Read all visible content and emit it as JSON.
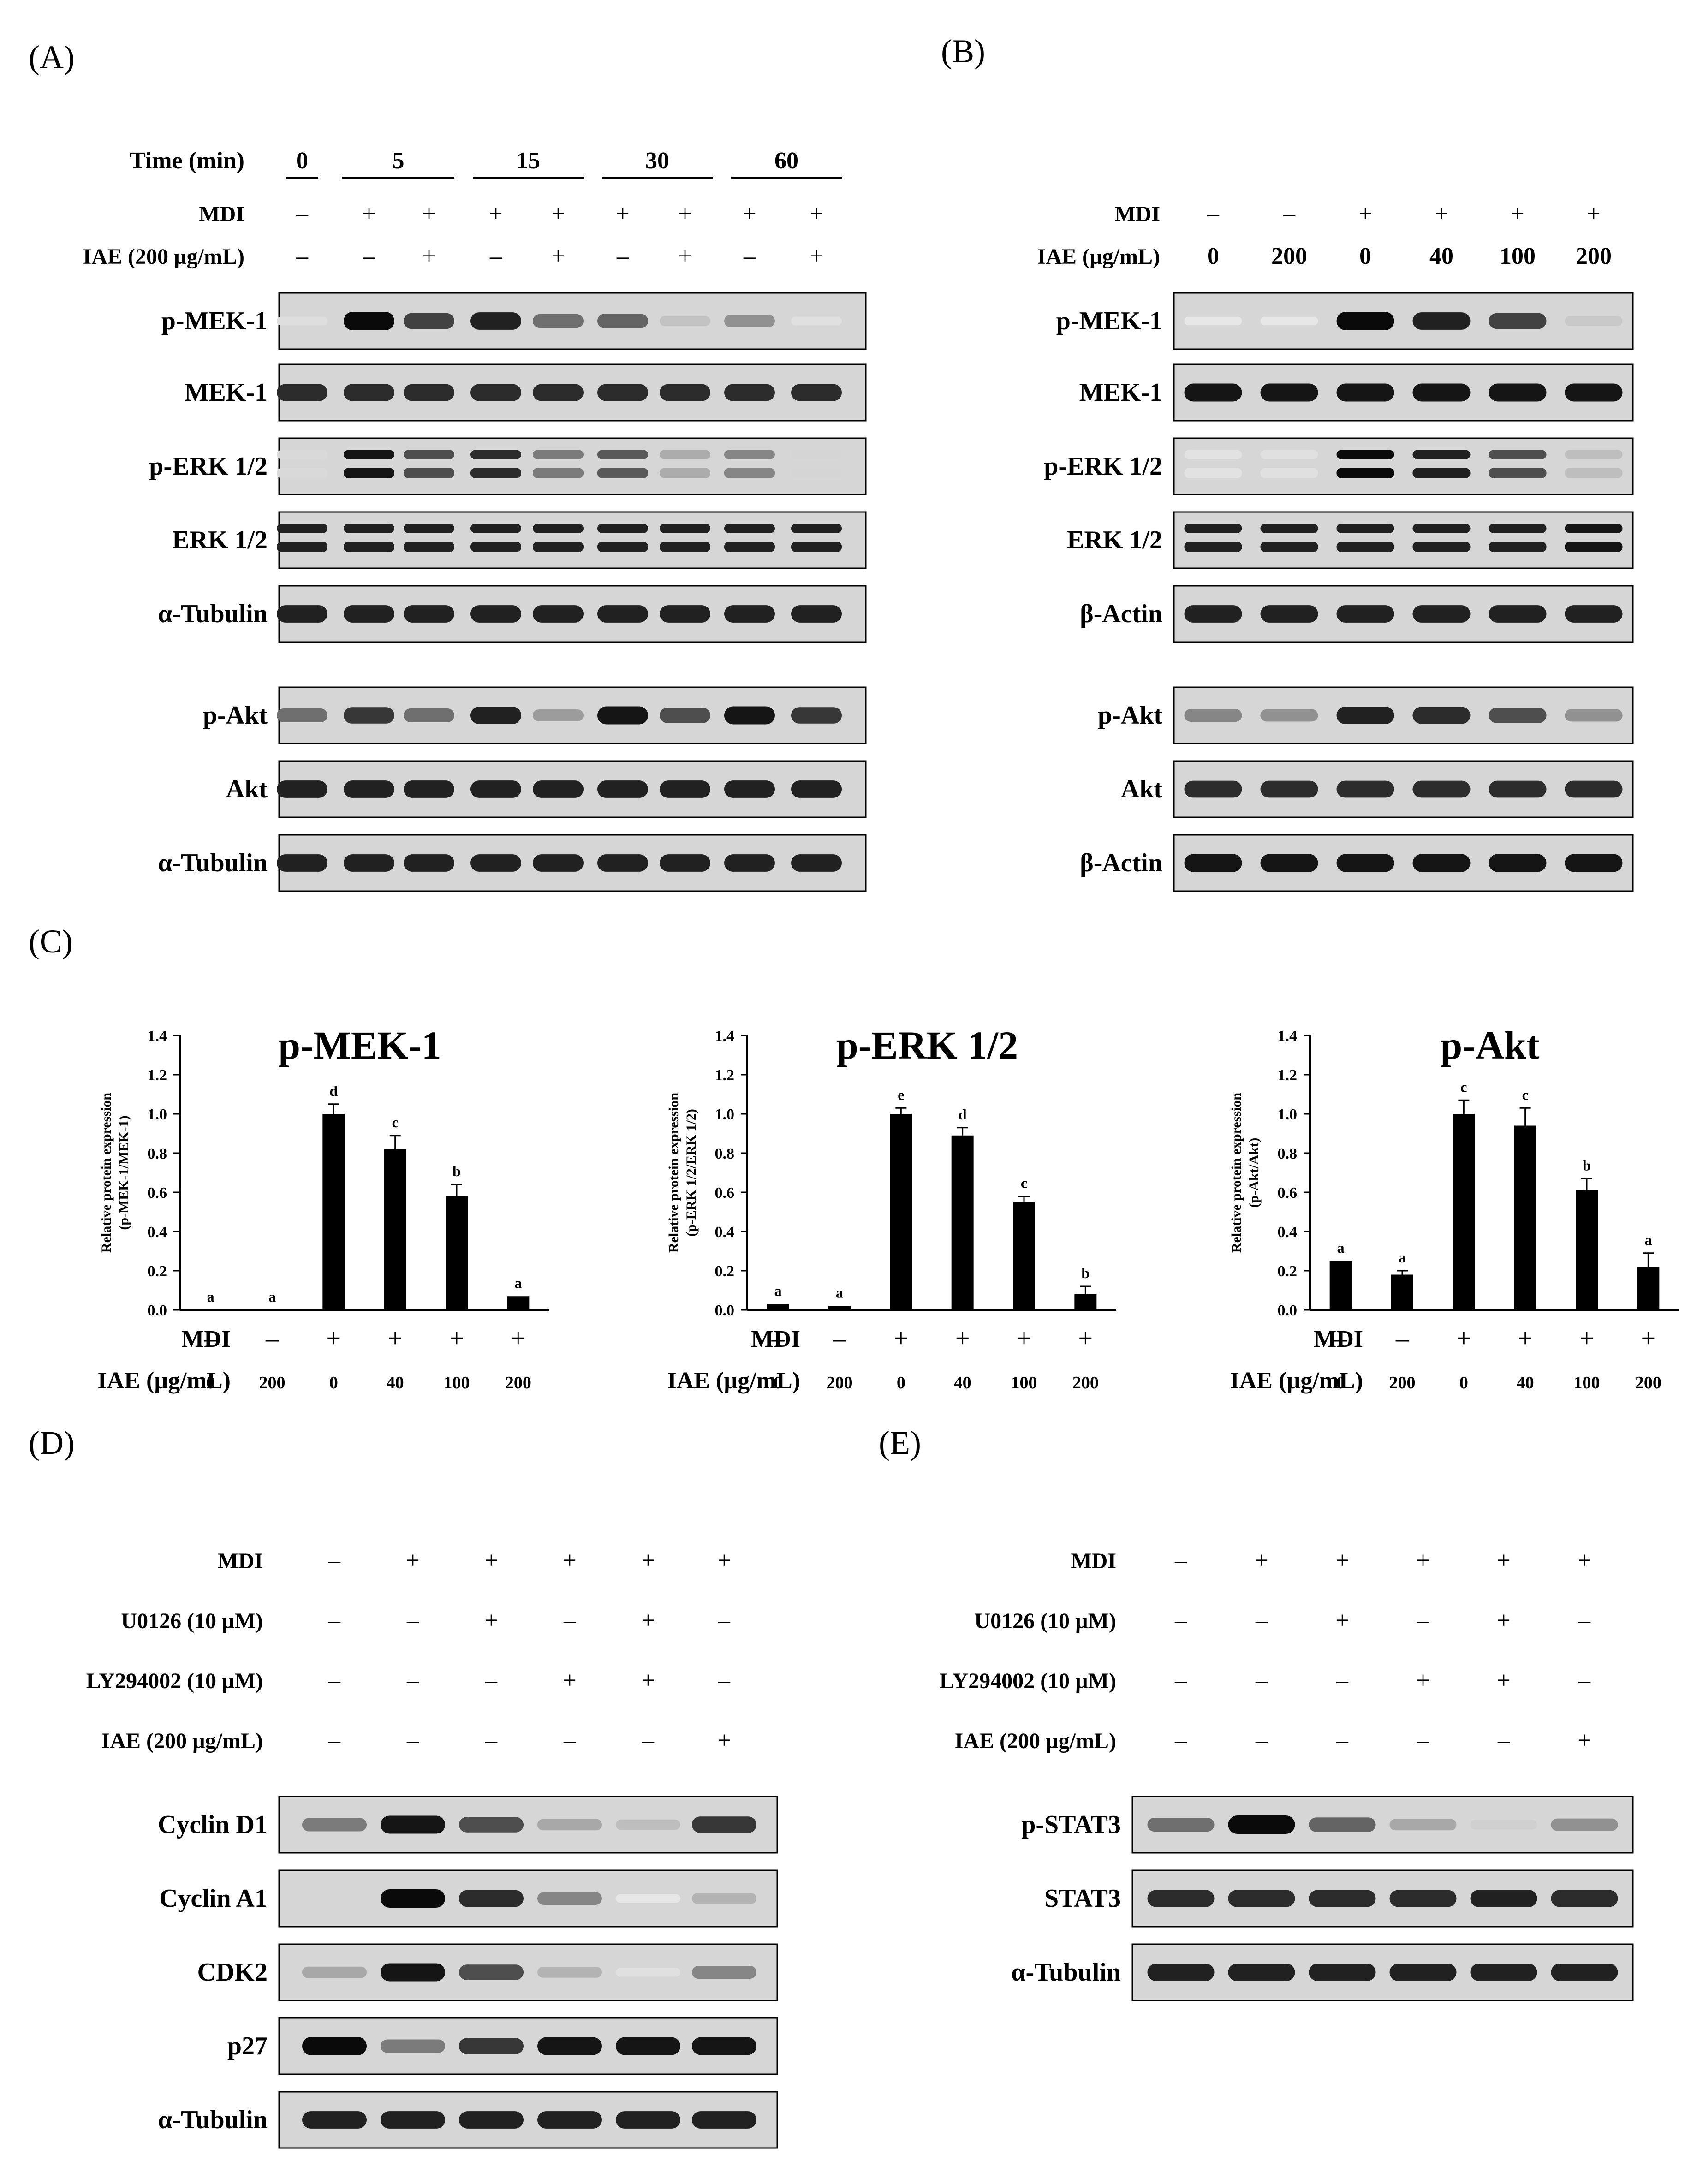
{
  "panels": {
    "A": {
      "label": "(A)",
      "time_label": "Time (min)",
      "time_groups": [
        "0",
        "5",
        "15",
        "30",
        "60"
      ],
      "rows": [
        {
          "label": "MDI",
          "values": [
            "–",
            "+",
            "+",
            "+",
            "+",
            "+",
            "+",
            "+",
            "+"
          ]
        },
        {
          "label": "IAE (200 µg/mL)",
          "values": [
            "–",
            "–",
            "+",
            "–",
            "+",
            "–",
            "+",
            "–",
            "+"
          ]
        }
      ],
      "blots": [
        {
          "label": "p-MEK-1",
          "intensity": [
            0.06,
            1.0,
            0.75,
            0.9,
            0.55,
            0.6,
            0.18,
            0.4,
            0.05
          ]
        },
        {
          "label": "MEK-1",
          "intensity": [
            0.85,
            0.85,
            0.85,
            0.85,
            0.85,
            0.85,
            0.85,
            0.85,
            0.85
          ]
        },
        {
          "label": "p-ERK 1/2",
          "doublet": true,
          "intensity": [
            0.08,
            0.95,
            0.7,
            0.85,
            0.5,
            0.65,
            0.28,
            0.45,
            0.1
          ]
        },
        {
          "label": "ERK 1/2",
          "doublet": true,
          "intensity": [
            0.9,
            0.9,
            0.9,
            0.9,
            0.9,
            0.9,
            0.9,
            0.9,
            0.9
          ]
        },
        {
          "label": "α-Tubulin",
          "intensity": [
            0.9,
            0.9,
            0.9,
            0.9,
            0.9,
            0.9,
            0.9,
            0.9,
            0.9
          ]
        },
        {
          "label": "p-Akt",
          "intensity": [
            0.55,
            0.8,
            0.55,
            0.9,
            0.35,
            0.95,
            0.7,
            0.95,
            0.8
          ]
        },
        {
          "label": "Akt",
          "intensity": [
            0.9,
            0.9,
            0.9,
            0.9,
            0.9,
            0.9,
            0.9,
            0.9,
            0.9
          ]
        },
        {
          "label": "α-Tubulin",
          "intensity": [
            0.9,
            0.9,
            0.9,
            0.9,
            0.9,
            0.9,
            0.9,
            0.9,
            0.9
          ]
        }
      ]
    },
    "B": {
      "label": "(B)",
      "rows": [
        {
          "label": "MDI",
          "values": [
            "–",
            "–",
            "+",
            "+",
            "+",
            "+"
          ]
        },
        {
          "label": "IAE (µg/mL)",
          "values": [
            "0",
            "200",
            "0",
            "40",
            "100",
            "200"
          ]
        }
      ],
      "blots": [
        {
          "label": "p-MEK-1",
          "intensity": [
            0.02,
            0.02,
            1.0,
            0.9,
            0.75,
            0.15
          ]
        },
        {
          "label": "MEK-1",
          "intensity": [
            0.95,
            0.95,
            0.95,
            0.95,
            0.95,
            0.95
          ]
        },
        {
          "label": "p-ERK 1/2",
          "doublet": true,
          "intensity": [
            0.04,
            0.05,
            1.0,
            0.9,
            0.7,
            0.2
          ]
        },
        {
          "label": "ERK 1/2",
          "doublet": true,
          "intensity": [
            0.9,
            0.9,
            0.9,
            0.9,
            0.9,
            0.95
          ]
        },
        {
          "label": "β-Actin",
          "intensity": [
            0.9,
            0.9,
            0.9,
            0.9,
            0.9,
            0.9
          ]
        },
        {
          "label": "p-Akt",
          "intensity": [
            0.45,
            0.4,
            0.9,
            0.85,
            0.7,
            0.4
          ]
        },
        {
          "label": "Akt",
          "intensity": [
            0.85,
            0.85,
            0.85,
            0.85,
            0.85,
            0.85
          ]
        },
        {
          "label": "β-Actin",
          "intensity": [
            0.95,
            0.95,
            0.95,
            0.95,
            0.95,
            0.95
          ]
        }
      ]
    },
    "C": {
      "label": "(C)",
      "mdi_label": "MDI",
      "iae_label": "IAE (µg/mL)",
      "mdi_values": [
        "–",
        "–",
        "+",
        "+",
        "+",
        "+"
      ],
      "iae_values": [
        "0",
        "200",
        "0",
        "40",
        "100",
        "200"
      ]
    },
    "D": {
      "label": "(D)",
      "rows": [
        {
          "label": "MDI",
          "values": [
            "–",
            "+",
            "+",
            "+",
            "+",
            "+"
          ]
        },
        {
          "label": "U0126 (10 µM)",
          "values": [
            "–",
            "–",
            "+",
            "–",
            "+",
            "–"
          ]
        },
        {
          "label": "LY294002 (10 µM)",
          "values": [
            "–",
            "–",
            "–",
            "+",
            "+",
            "–"
          ]
        },
        {
          "label": "IAE (200 µg/mL)",
          "values": [
            "–",
            "–",
            "–",
            "–",
            "–",
            "+"
          ]
        }
      ],
      "blots": [
        {
          "label": "Cyclin D1",
          "intensity": [
            0.5,
            0.95,
            0.7,
            0.3,
            0.2,
            0.8
          ]
        },
        {
          "label": "Cyclin A1",
          "intensity": [
            0.0,
            1.0,
            0.85,
            0.45,
            0.02,
            0.25
          ]
        },
        {
          "label": "CDK2",
          "intensity": [
            0.3,
            0.95,
            0.7,
            0.25,
            0.05,
            0.45
          ]
        },
        {
          "label": "p27",
          "intensity": [
            1.0,
            0.5,
            0.8,
            0.95,
            0.95,
            0.95
          ]
        },
        {
          "label": "α-Tubulin",
          "intensity": [
            0.9,
            0.9,
            0.9,
            0.9,
            0.9,
            0.9
          ]
        }
      ]
    },
    "E": {
      "label": "(E)",
      "rows": [
        {
          "label": "MDI",
          "values": [
            "–",
            "+",
            "+",
            "+",
            "+",
            "+"
          ]
        },
        {
          "label": "U0126 (10 µM)",
          "values": [
            "–",
            "–",
            "+",
            "–",
            "+",
            "–"
          ]
        },
        {
          "label": "LY294002 (10 µM)",
          "values": [
            "–",
            "–",
            "–",
            "+",
            "+",
            "–"
          ]
        },
        {
          "label": "IAE (200 µg/mL)",
          "values": [
            "–",
            "–",
            "–",
            "–",
            "–",
            "+"
          ]
        }
      ],
      "blots": [
        {
          "label": "p-STAT3",
          "intensity": [
            0.55,
            1.0,
            0.6,
            0.3,
            0.12,
            0.4
          ]
        },
        {
          "label": "STAT3",
          "intensity": [
            0.85,
            0.85,
            0.85,
            0.85,
            0.9,
            0.85
          ]
        },
        {
          "label": "α-Tubulin",
          "intensity": [
            0.9,
            0.9,
            0.9,
            0.9,
            0.9,
            0.9
          ]
        }
      ]
    }
  },
  "chart_data": [
    {
      "type": "bar",
      "title": "p-MEK-1",
      "ylabel": "Relative protein expression (p-MEK-1/MEK-1)",
      "ylim": [
        0.0,
        1.4
      ],
      "yticks": [
        "0.0",
        "0.2",
        "0.4",
        "0.6",
        "0.8",
        "1.0",
        "1.2",
        "1.4"
      ],
      "categories": [
        "1",
        "2",
        "3",
        "4",
        "5",
        "6"
      ],
      "values": [
        0.0,
        0.0,
        1.0,
        0.82,
        0.58,
        0.07
      ],
      "errors": [
        0.0,
        0.0,
        0.05,
        0.07,
        0.06,
        0.0
      ],
      "letters": [
        "a",
        "a",
        "d",
        "c",
        "b",
        "a"
      ],
      "color": "#000000"
    },
    {
      "type": "bar",
      "title": "p-ERK 1/2",
      "ylabel": "Relative protein expression (p-ERK 1/2/ERK 1/2)",
      "ylim": [
        0.0,
        1.4
      ],
      "yticks": [
        "0.0",
        "0.2",
        "0.4",
        "0.6",
        "0.8",
        "1.0",
        "1.2",
        "1.4"
      ],
      "categories": [
        "1",
        "2",
        "3",
        "4",
        "5",
        "6"
      ],
      "values": [
        0.03,
        0.02,
        1.0,
        0.89,
        0.55,
        0.08
      ],
      "errors": [
        0.0,
        0.0,
        0.03,
        0.04,
        0.03,
        0.04
      ],
      "letters": [
        "a",
        "a",
        "e",
        "d",
        "c",
        "b"
      ],
      "color": "#000000"
    },
    {
      "type": "bar",
      "title": "p-Akt",
      "ylabel": "Relative protein expression (p-Akt/Akt)",
      "ylim": [
        0.0,
        1.4
      ],
      "yticks": [
        "0.0",
        "0.2",
        "0.4",
        "0.6",
        "0.8",
        "1.0",
        "1.2",
        "1.4"
      ],
      "categories": [
        "1",
        "2",
        "3",
        "4",
        "5",
        "6"
      ],
      "values": [
        0.25,
        0.18,
        1.0,
        0.94,
        0.61,
        0.22
      ],
      "errors": [
        0.0,
        0.02,
        0.07,
        0.09,
        0.06,
        0.07
      ],
      "letters": [
        "a",
        "a",
        "c",
        "c",
        "b",
        "a"
      ],
      "color": "#000000"
    }
  ]
}
